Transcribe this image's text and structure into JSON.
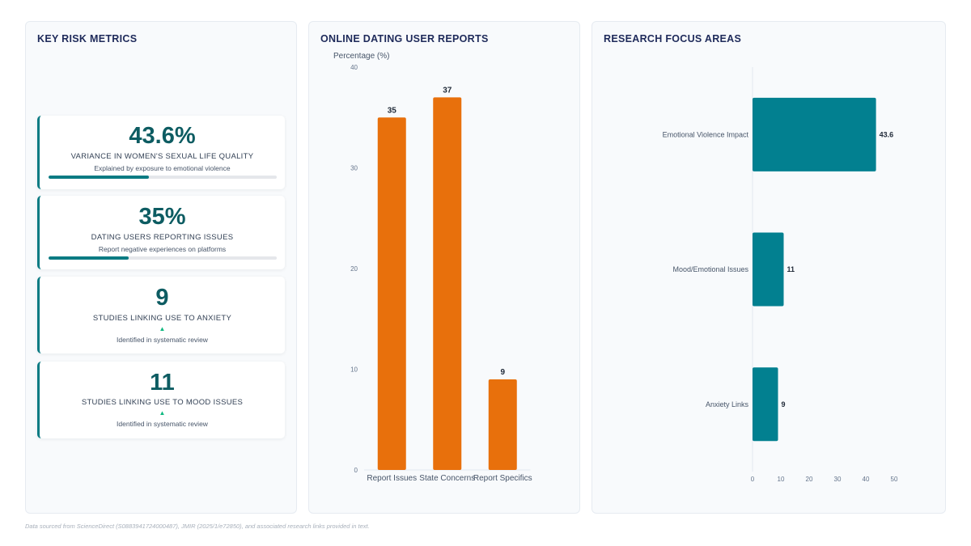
{
  "panels": {
    "metrics_title": "KEY RISK METRICS",
    "reports_title": "ONLINE DATING USER REPORTS",
    "focus_title": "RESEARCH FOCUS AREAS"
  },
  "metrics": [
    {
      "value": "43.6%",
      "label": "VARIANCE IN WOMEN'S SEXUAL LIFE QUALITY",
      "sub": "Explained by exposure to emotional violence",
      "progress": 0.44
    },
    {
      "value": "35%",
      "label": "DATING USERS REPORTING ISSUES",
      "sub": "Report negative experiences on platforms",
      "progress": 0.35
    },
    {
      "value": "9",
      "label": "STUDIES LINKING USE TO ANXIETY",
      "arrow": "▲",
      "sub": "Identified in systematic review"
    },
    {
      "value": "11",
      "label": "STUDIES LINKING USE TO MOOD ISSUES",
      "arrow": "▲",
      "sub": "Identified in systematic review"
    }
  ],
  "chart_data": [
    {
      "type": "bar",
      "title": "ONLINE DATING USER REPORTS",
      "ylabel": "Percentage (%)",
      "categories": [
        "Report Issues",
        "State Concerns",
        "Report Specifics"
      ],
      "values": [
        35,
        37,
        9
      ],
      "ylim": [
        0,
        40
      ],
      "yticks": [
        0,
        10,
        20,
        30,
        40
      ],
      "color": "#e8700c",
      "grid": false
    },
    {
      "type": "bar",
      "orientation": "horizontal",
      "title": "RESEARCH FOCUS AREAS",
      "categories": [
        "Emotional Violence Impact",
        "Mood/Emotional Issues",
        "Anxiety Links"
      ],
      "values": [
        43.6,
        11,
        9
      ],
      "value_labels": [
        "43.6",
        "11",
        "9"
      ],
      "xlim": [
        0,
        50
      ],
      "xticks": [
        0,
        10,
        20,
        30,
        40,
        50
      ],
      "color": "#028090",
      "grid": false
    }
  ],
  "footer": "Data sourced from ScienceDirect (S0883941724000487), JMIR (2025/1/e72850), and associated research links provided in text."
}
